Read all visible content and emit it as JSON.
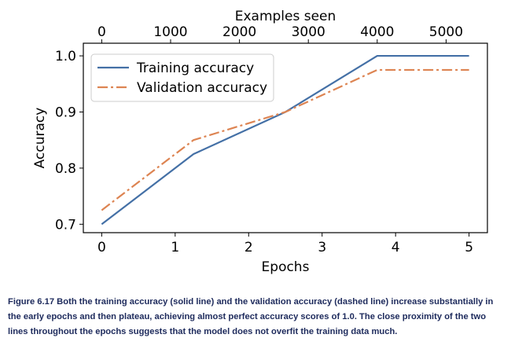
{
  "chart_data": {
    "type": "line",
    "xlabel": "Epochs",
    "ylabel": "Accuracy",
    "top_xlabel": "Examples seen",
    "xlim": [
      -0.25,
      5.25
    ],
    "ylim": [
      0.685,
      1.0225
    ],
    "x_ticks": [
      0,
      1,
      2,
      3,
      4,
      5
    ],
    "y_ticks": [
      0.7,
      0.8,
      0.9,
      1.0
    ],
    "y_tick_labels": [
      "0.7",
      "0.8",
      "0.9",
      "1.0"
    ],
    "top_ticks": [
      0,
      1000,
      2000,
      3000,
      4000,
      5000
    ],
    "top_xlim": [
      -267,
      5600
    ],
    "legend_position": "upper-left",
    "grid": false,
    "series": [
      {
        "name": "Training accuracy",
        "color": "#4470a6",
        "style": "solid",
        "x": [
          0,
          1.25,
          2.5,
          3.75,
          5
        ],
        "y": [
          0.7,
          0.825,
          0.9,
          1.0,
          1.0
        ]
      },
      {
        "name": "Validation accuracy",
        "color": "#dd8452",
        "style": "dashdot",
        "x": [
          0,
          1.25,
          2.5,
          3.75,
          5
        ],
        "y": [
          0.725,
          0.85,
          0.9,
          0.975,
          0.975
        ]
      }
    ]
  },
  "caption": "Figure 6.17 Both the training accuracy (solid line) and the validation accuracy (dashed line) increase substantially in the early epochs and then plateau, achieving almost perfect accuracy scores of 1.0. The close proximity of the two lines throughout the epochs suggests that the model does not overfit the training data much."
}
